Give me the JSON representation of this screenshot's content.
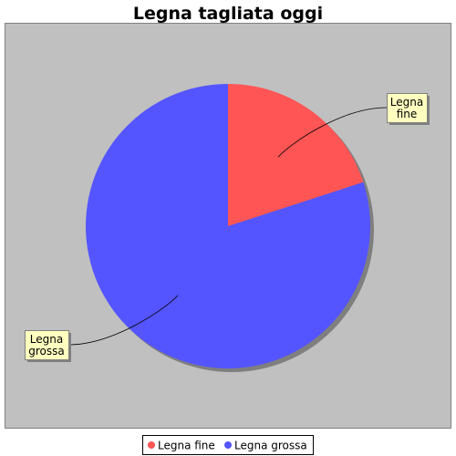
{
  "chart_data": {
    "type": "pie",
    "title": "Legna tagliata oggi",
    "slices": [
      {
        "name": "Legna fine",
        "label_lines": [
          "Legna",
          "fine"
        ],
        "value": 20,
        "color": "#ff5555"
      },
      {
        "name": "Legna grossa",
        "label_lines": [
          "Legna",
          "grossa"
        ],
        "value": 80,
        "color": "#5555ff"
      }
    ],
    "plot_background": "#c0c0c0",
    "label_background": "#ffffc0",
    "shadow_color": "#7f7f7f",
    "legend_position": "bottom"
  }
}
